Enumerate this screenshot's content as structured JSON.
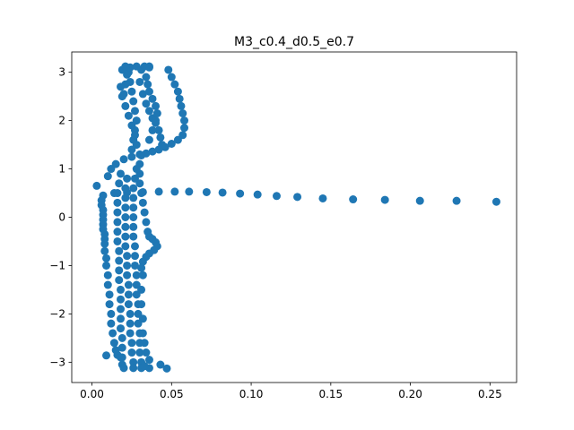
{
  "chart_data": {
    "type": "scatter",
    "title": "M3_c0.4_d0.5_e0.7",
    "xlabel": "",
    "ylabel": "",
    "xlim": [
      -0.0127,
      0.2667
    ],
    "ylim": [
      -3.42,
      3.42
    ],
    "xticks": [
      0.0,
      0.05,
      0.1,
      0.15,
      0.2,
      0.25
    ],
    "xtick_labels": [
      "0.00",
      "0.05",
      "0.10",
      "0.15",
      "0.20",
      "0.25"
    ],
    "yticks": [
      -3,
      -2,
      -1,
      0,
      1,
      2,
      3
    ],
    "ytick_labels": [
      "−3",
      "−2",
      "−1",
      "0",
      "1",
      "2",
      "3"
    ],
    "grid": false,
    "marker_color": "#1f77b4",
    "series": [
      {
        "points": [
          [
            0.254,
            0.32
          ],
          [
            0.229,
            0.34
          ],
          [
            0.206,
            0.34
          ],
          [
            0.184,
            0.36
          ],
          [
            0.164,
            0.37
          ],
          [
            0.145,
            0.39
          ],
          [
            0.129,
            0.42
          ],
          [
            0.116,
            0.44
          ],
          [
            0.104,
            0.47
          ],
          [
            0.093,
            0.49
          ],
          [
            0.082,
            0.51
          ],
          [
            0.072,
            0.52
          ],
          [
            0.061,
            0.53
          ],
          [
            0.052,
            0.53
          ],
          [
            0.042,
            0.53
          ],
          [
            0.032,
            0.52
          ],
          [
            0.022,
            0.51
          ],
          [
            0.014,
            0.5
          ],
          [
            0.003,
            0.65
          ],
          [
            0.007,
            0.45
          ],
          [
            0.006,
            0.35
          ],
          [
            0.006,
            0.25
          ],
          [
            0.007,
            0.15
          ],
          [
            0.007,
            0.05
          ],
          [
            0.007,
            -0.05
          ],
          [
            0.007,
            -0.15
          ],
          [
            0.007,
            -0.25
          ],
          [
            0.008,
            -0.35
          ],
          [
            0.008,
            -0.45
          ],
          [
            0.008,
            -0.55
          ],
          [
            0.008,
            -0.7
          ],
          [
            0.009,
            -0.85
          ],
          [
            0.009,
            -1.0
          ],
          [
            0.01,
            -1.2
          ],
          [
            0.01,
            -1.4
          ],
          [
            0.011,
            -1.6
          ],
          [
            0.011,
            -1.8
          ],
          [
            0.012,
            -2.0
          ],
          [
            0.012,
            -2.2
          ],
          [
            0.013,
            -2.4
          ],
          [
            0.014,
            -2.6
          ],
          [
            0.015,
            -2.75
          ],
          [
            0.016,
            -2.85
          ],
          [
            0.018,
            -2.9
          ],
          [
            0.009,
            -2.86
          ],
          [
            0.01,
            0.85
          ],
          [
            0.012,
            1.0
          ],
          [
            0.015,
            1.1
          ],
          [
            0.02,
            1.2
          ],
          [
            0.025,
            1.25
          ],
          [
            0.018,
            0.9
          ],
          [
            0.017,
            0.7
          ],
          [
            0.016,
            0.5
          ],
          [
            0.016,
            0.3
          ],
          [
            0.016,
            0.1
          ],
          [
            0.016,
            -0.1
          ],
          [
            0.016,
            -0.3
          ],
          [
            0.016,
            -0.5
          ],
          [
            0.017,
            -0.7
          ],
          [
            0.017,
            -0.9
          ],
          [
            0.017,
            -1.1
          ],
          [
            0.017,
            -1.3
          ],
          [
            0.018,
            -1.5
          ],
          [
            0.018,
            -1.7
          ],
          [
            0.018,
            -1.9
          ],
          [
            0.018,
            -2.1
          ],
          [
            0.018,
            -2.3
          ],
          [
            0.019,
            -2.5
          ],
          [
            0.019,
            -2.7
          ],
          [
            0.019,
            -2.9
          ],
          [
            0.019,
            -3.05
          ],
          [
            0.02,
            -3.12
          ],
          [
            0.022,
            0.8
          ],
          [
            0.021,
            0.6
          ],
          [
            0.021,
            0.4
          ],
          [
            0.021,
            0.2
          ],
          [
            0.021,
            0.0
          ],
          [
            0.021,
            -0.2
          ],
          [
            0.021,
            -0.4
          ],
          [
            0.021,
            -0.6
          ],
          [
            0.022,
            -0.8
          ],
          [
            0.022,
            -1.0
          ],
          [
            0.022,
            -1.2
          ],
          [
            0.023,
            -1.4
          ],
          [
            0.023,
            -1.6
          ],
          [
            0.023,
            -1.8
          ],
          [
            0.024,
            -2.0
          ],
          [
            0.024,
            -2.2
          ],
          [
            0.024,
            -2.4
          ],
          [
            0.025,
            -2.6
          ],
          [
            0.025,
            -2.8
          ],
          [
            0.026,
            -3.0
          ],
          [
            0.026,
            -3.12
          ],
          [
            0.025,
            1.4
          ],
          [
            0.026,
            1.6
          ],
          [
            0.027,
            1.8
          ],
          [
            0.028,
            2.0
          ],
          [
            0.027,
            2.2
          ],
          [
            0.026,
            2.4
          ],
          [
            0.025,
            2.6
          ],
          [
            0.024,
            2.8
          ],
          [
            0.023,
            3.0
          ],
          [
            0.024,
            3.1
          ],
          [
            0.022,
            2.95
          ],
          [
            0.021,
            2.75
          ],
          [
            0.02,
            2.55
          ],
          [
            0.019,
            3.05
          ],
          [
            0.021,
            3.12
          ],
          [
            0.028,
            3.12
          ],
          [
            0.031,
            3.05
          ],
          [
            0.033,
            3.12
          ],
          [
            0.036,
            3.1
          ],
          [
            0.03,
            2.8
          ],
          [
            0.032,
            2.55
          ],
          [
            0.034,
            2.35
          ],
          [
            0.036,
            2.2
          ],
          [
            0.038,
            2.05
          ],
          [
            0.04,
            1.95
          ],
          [
            0.042,
            1.8
          ],
          [
            0.043,
            1.65
          ],
          [
            0.044,
            1.5
          ],
          [
            0.03,
            1.3
          ],
          [
            0.03,
            1.1
          ],
          [
            0.03,
            0.9
          ],
          [
            0.03,
            0.7
          ],
          [
            0.031,
            0.5
          ],
          [
            0.032,
            0.3
          ],
          [
            0.033,
            0.1
          ],
          [
            0.034,
            -0.1
          ],
          [
            0.028,
            1.0
          ],
          [
            0.027,
            0.8
          ],
          [
            0.026,
            0.6
          ],
          [
            0.026,
            0.4
          ],
          [
            0.026,
            0.2
          ],
          [
            0.026,
            0.0
          ],
          [
            0.026,
            -0.2
          ],
          [
            0.026,
            -0.4
          ],
          [
            0.027,
            -0.6
          ],
          [
            0.027,
            -0.8
          ],
          [
            0.027,
            -1.0
          ],
          [
            0.028,
            -1.2
          ],
          [
            0.028,
            -1.4
          ],
          [
            0.028,
            -1.6
          ],
          [
            0.029,
            -1.8
          ],
          [
            0.029,
            -2.0
          ],
          [
            0.029,
            -2.2
          ],
          [
            0.03,
            -2.4
          ],
          [
            0.03,
            -2.6
          ],
          [
            0.03,
            -2.8
          ],
          [
            0.031,
            -3.0
          ],
          [
            0.031,
            -3.12
          ],
          [
            0.032,
            -1.2
          ],
          [
            0.031,
            -1.5
          ],
          [
            0.031,
            -1.8
          ],
          [
            0.032,
            -2.1
          ],
          [
            0.032,
            -2.4
          ],
          [
            0.033,
            -2.6
          ],
          [
            0.034,
            -2.8
          ],
          [
            0.036,
            -2.95
          ],
          [
            0.036,
            -3.12
          ],
          [
            0.033,
            -3.08
          ],
          [
            0.035,
            -0.3
          ],
          [
            0.036,
            -0.4
          ],
          [
            0.038,
            -0.45
          ],
          [
            0.04,
            -0.52
          ],
          [
            0.041,
            -0.6
          ],
          [
            0.039,
            -0.68
          ],
          [
            0.036,
            -0.75
          ],
          [
            0.034,
            -0.82
          ],
          [
            0.032,
            -0.92
          ],
          [
            0.031,
            -1.05
          ],
          [
            0.043,
            -3.05
          ],
          [
            0.047,
            -3.13
          ],
          [
            0.048,
            3.05
          ],
          [
            0.05,
            2.9
          ],
          [
            0.052,
            2.75
          ],
          [
            0.054,
            2.6
          ],
          [
            0.055,
            2.45
          ],
          [
            0.056,
            2.3
          ],
          [
            0.057,
            2.15
          ],
          [
            0.058,
            2.0
          ],
          [
            0.058,
            1.85
          ],
          [
            0.057,
            1.7
          ],
          [
            0.054,
            1.6
          ],
          [
            0.05,
            1.52
          ],
          [
            0.046,
            1.45
          ],
          [
            0.042,
            1.4
          ],
          [
            0.038,
            1.36
          ],
          [
            0.034,
            1.32
          ],
          [
            0.031,
            1.28
          ],
          [
            0.036,
            1.6
          ],
          [
            0.038,
            1.8
          ],
          [
            0.04,
            2.0
          ],
          [
            0.041,
            2.15
          ],
          [
            0.04,
            2.3
          ],
          [
            0.038,
            2.45
          ],
          [
            0.036,
            2.6
          ],
          [
            0.035,
            2.75
          ],
          [
            0.034,
            2.9
          ],
          [
            0.036,
            3.12
          ],
          [
            0.018,
            2.7
          ],
          [
            0.019,
            2.5
          ],
          [
            0.021,
            2.3
          ],
          [
            0.023,
            2.1
          ],
          [
            0.025,
            1.9
          ],
          [
            0.027,
            1.7
          ],
          [
            0.028,
            1.5
          ]
        ]
      }
    ]
  }
}
